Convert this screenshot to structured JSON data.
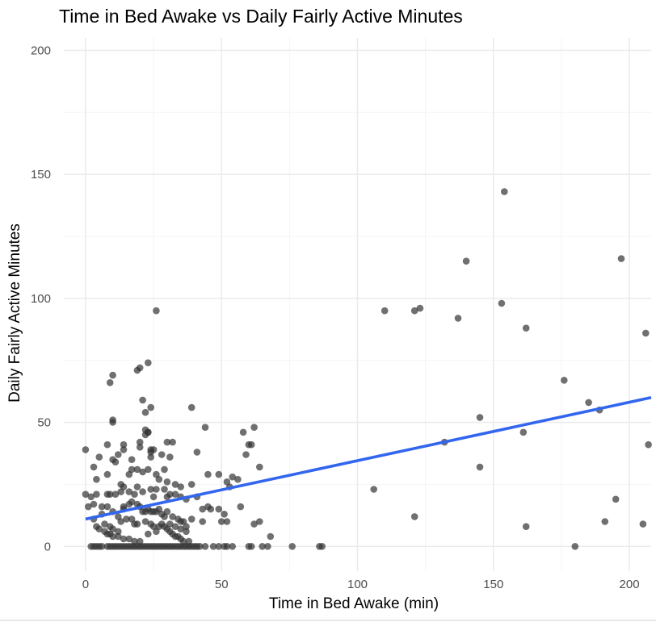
{
  "chart_data": {
    "type": "scatter",
    "title": "Time in Bed Awake vs Daily Fairly Active Minutes",
    "xlabel": "Time in Bed Awake (min)",
    "ylabel": "Daily Fairly Active Minutes",
    "xlim": [
      -8,
      208
    ],
    "ylim": [
      -10,
      205
    ],
    "xticks": [
      0,
      50,
      100,
      150,
      200
    ],
    "yticks": [
      0,
      50,
      100,
      150,
      200
    ],
    "grid": true,
    "point_color": "#333333",
    "point_opacity": 0.7,
    "trend_color": "#3366ee",
    "trend_line": {
      "x": [
        0,
        208
      ],
      "y": [
        11,
        60
      ]
    },
    "points": [
      [
        110,
        95
      ],
      [
        121,
        95
      ],
      [
        123,
        96
      ],
      [
        137,
        92
      ],
      [
        140,
        115
      ],
      [
        153,
        98
      ],
      [
        154,
        143
      ],
      [
        162,
        88
      ],
      [
        197,
        116
      ],
      [
        206,
        86
      ],
      [
        176,
        67
      ],
      [
        185,
        58
      ],
      [
        189,
        55
      ],
      [
        145,
        52
      ],
      [
        132,
        42
      ],
      [
        161,
        46
      ],
      [
        145,
        32
      ],
      [
        207,
        41
      ],
      [
        106,
        23
      ],
      [
        121,
        12
      ],
      [
        162,
        8
      ],
      [
        180,
        0
      ],
      [
        191,
        10
      ],
      [
        195,
        19
      ],
      [
        205,
        9
      ],
      [
        87,
        0
      ],
      [
        86,
        0
      ],
      [
        76,
        0
      ],
      [
        68,
        4
      ],
      [
        67,
        0
      ],
      [
        65,
        0
      ],
      [
        64,
        10
      ],
      [
        62,
        9
      ],
      [
        61,
        0
      ],
      [
        60,
        0
      ],
      [
        64,
        32
      ],
      [
        61,
        41
      ],
      [
        60,
        41
      ],
      [
        59,
        37
      ],
      [
        62,
        48
      ],
      [
        58,
        46
      ],
      [
        56,
        27
      ],
      [
        57,
        16
      ],
      [
        54,
        28
      ],
      [
        53,
        24
      ],
      [
        52,
        26
      ],
      [
        52,
        10
      ],
      [
        51,
        13
      ],
      [
        50,
        10
      ],
      [
        49,
        15
      ],
      [
        49,
        29
      ],
      [
        45,
        29
      ],
      [
        45,
        16
      ],
      [
        46,
        15
      ],
      [
        43,
        15
      ],
      [
        44,
        48
      ],
      [
        39,
        56
      ],
      [
        41,
        20
      ],
      [
        41,
        38
      ],
      [
        39,
        25
      ],
      [
        54,
        0
      ],
      [
        52,
        0
      ],
      [
        51,
        0
      ],
      [
        49,
        0
      ],
      [
        47,
        0
      ],
      [
        44,
        0
      ],
      [
        41,
        0
      ],
      [
        42,
        0
      ],
      [
        43,
        10
      ],
      [
        26,
        95
      ],
      [
        23,
        74
      ],
      [
        20,
        72
      ],
      [
        19,
        71
      ],
      [
        10,
        69
      ],
      [
        9,
        66
      ],
      [
        21,
        59
      ],
      [
        24,
        56
      ],
      [
        22,
        54
      ],
      [
        10,
        51
      ],
      [
        10,
        50
      ],
      [
        22,
        47
      ],
      [
        23,
        46
      ],
      [
        23,
        46
      ],
      [
        22,
        45
      ],
      [
        20,
        42
      ],
      [
        14,
        41
      ],
      [
        8,
        41
      ],
      [
        20,
        40
      ],
      [
        24,
        39
      ],
      [
        24,
        38
      ],
      [
        25,
        39
      ],
      [
        14,
        39
      ],
      [
        12,
        37
      ],
      [
        5,
        36
      ],
      [
        24,
        36
      ],
      [
        28,
        37
      ],
      [
        31,
        36
      ],
      [
        30,
        42
      ],
      [
        32,
        42
      ],
      [
        17,
        35
      ],
      [
        10,
        35
      ],
      [
        11,
        34
      ],
      [
        3,
        32
      ],
      [
        17,
        31
      ],
      [
        19,
        31
      ],
      [
        23,
        31
      ],
      [
        29,
        31
      ],
      [
        21,
        30
      ],
      [
        26,
        29
      ],
      [
        4,
        27
      ],
      [
        8,
        29
      ],
      [
        16,
        29
      ],
      [
        27,
        27
      ],
      [
        30,
        26
      ],
      [
        13,
        25
      ],
      [
        14,
        24
      ],
      [
        19,
        24
      ],
      [
        33,
        25
      ],
      [
        35,
        24
      ],
      [
        0,
        39
      ],
      [
        0,
        21
      ],
      [
        2,
        20
      ],
      [
        4,
        21
      ],
      [
        8,
        21
      ],
      [
        9,
        21
      ],
      [
        11,
        21
      ],
      [
        13,
        22
      ],
      [
        16,
        22
      ],
      [
        18,
        21
      ],
      [
        21,
        22
      ],
      [
        24,
        23
      ],
      [
        25,
        20
      ],
      [
        26,
        23
      ],
      [
        29,
        23
      ],
      [
        30,
        20
      ],
      [
        31,
        21
      ],
      [
        33,
        21
      ],
      [
        35,
        20
      ],
      [
        37,
        19
      ],
      [
        1,
        16
      ],
      [
        3,
        17
      ],
      [
        6,
        16
      ],
      [
        8,
        16
      ],
      [
        14,
        16
      ],
      [
        14,
        15
      ],
      [
        16,
        17
      ],
      [
        17,
        18
      ],
      [
        19,
        17
      ],
      [
        20,
        16
      ],
      [
        21,
        14
      ],
      [
        22,
        14
      ],
      [
        23,
        15
      ],
      [
        24,
        14
      ],
      [
        25,
        14
      ],
      [
        26,
        14
      ],
      [
        27,
        15
      ],
      [
        28,
        13
      ],
      [
        29,
        12
      ],
      [
        30,
        14
      ],
      [
        32,
        12
      ],
      [
        34,
        11
      ],
      [
        35,
        10
      ],
      [
        36,
        10
      ],
      [
        37,
        8
      ],
      [
        39,
        11
      ],
      [
        6,
        13
      ],
      [
        10,
        14
      ],
      [
        12,
        12
      ],
      [
        13,
        10
      ],
      [
        15,
        11
      ],
      [
        17,
        11
      ],
      [
        18,
        9
      ],
      [
        19,
        9
      ],
      [
        22,
        10
      ],
      [
        24,
        9
      ],
      [
        25,
        8
      ],
      [
        27,
        8
      ],
      [
        29,
        8
      ],
      [
        30,
        7
      ],
      [
        31,
        6
      ],
      [
        32,
        5
      ],
      [
        33,
        4
      ],
      [
        34,
        4
      ],
      [
        35,
        3
      ],
      [
        36,
        2
      ],
      [
        38,
        2
      ],
      [
        4,
        8
      ],
      [
        5,
        7
      ],
      [
        7,
        6
      ],
      [
        8,
        5
      ],
      [
        9,
        5
      ],
      [
        10,
        4
      ],
      [
        12,
        4
      ],
      [
        14,
        3
      ],
      [
        16,
        3
      ],
      [
        18,
        2
      ],
      [
        20,
        2
      ],
      [
        23,
        5
      ],
      [
        26,
        6
      ],
      [
        28,
        9
      ],
      [
        31,
        9
      ],
      [
        33,
        8
      ],
      [
        35,
        7
      ],
      [
        37,
        6
      ],
      [
        3,
        11
      ],
      [
        7,
        9
      ],
      [
        9,
        8
      ],
      [
        10,
        7
      ],
      [
        12,
        6
      ],
      [
        2,
        0
      ],
      [
        3,
        0
      ],
      [
        4,
        0
      ],
      [
        5,
        0
      ],
      [
        6,
        0
      ],
      [
        8,
        0
      ],
      [
        9,
        0
      ],
      [
        10,
        0
      ],
      [
        11,
        0
      ],
      [
        12,
        0
      ],
      [
        13,
        0
      ],
      [
        14,
        0
      ],
      [
        15,
        0
      ],
      [
        16,
        0
      ],
      [
        17,
        0
      ],
      [
        18,
        0
      ],
      [
        19,
        0
      ],
      [
        20,
        0
      ],
      [
        21,
        0
      ],
      [
        22,
        0
      ],
      [
        23,
        0
      ],
      [
        24,
        0
      ],
      [
        25,
        0
      ],
      [
        26,
        0
      ],
      [
        27,
        0
      ],
      [
        28,
        0
      ],
      [
        29,
        0
      ],
      [
        30,
        0
      ],
      [
        31,
        0
      ],
      [
        32,
        0
      ],
      [
        33,
        0
      ],
      [
        34,
        0
      ],
      [
        35,
        0
      ],
      [
        36,
        0
      ],
      [
        37,
        0
      ],
      [
        38,
        0
      ],
      [
        39,
        0
      ],
      [
        40,
        0
      ]
    ]
  }
}
